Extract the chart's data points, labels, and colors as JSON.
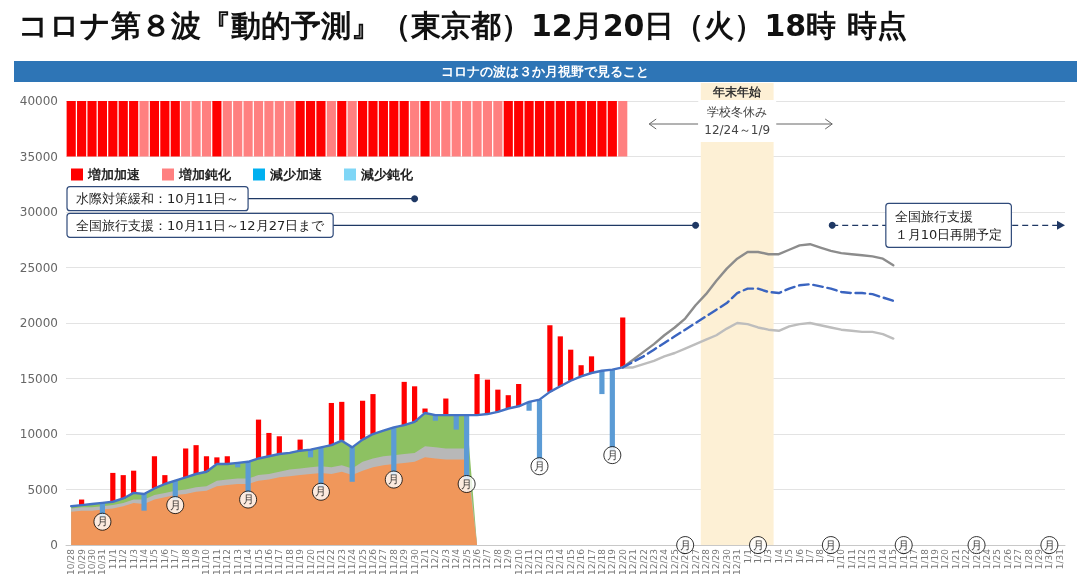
{
  "chart_data": {
    "type": "area",
    "title": "コロナ第８波『動的予測』（東京都）12月20日（火）18時 時点",
    "subtitle": "コロナの波は３か月視野で見ること",
    "categories": [
      "10/28",
      "10/29",
      "10/30",
      "10/31",
      "11/1",
      "11/2",
      "11/3",
      "11/4",
      "11/5",
      "11/6",
      "11/7",
      "11/8",
      "11/9",
      "11/10",
      "11/11",
      "11/12",
      "11/13",
      "11/14",
      "11/15",
      "11/16",
      "11/17",
      "11/18",
      "11/19",
      "11/20",
      "11/21",
      "11/22",
      "11/23",
      "11/24",
      "11/25",
      "11/26",
      "11/27",
      "11/28",
      "11/29",
      "11/30",
      "12/1",
      "12/2",
      "12/3",
      "12/4",
      "12/5",
      "12/6",
      "12/7",
      "12/8",
      "12/9",
      "12/10",
      "12/11",
      "12/12",
      "12/13",
      "12/14",
      "12/15",
      "12/16",
      "12/17",
      "12/18",
      "12/19",
      "12/20",
      "12/21",
      "12/22",
      "12/23",
      "12/24",
      "12/25",
      "12/26",
      "12/27",
      "12/28",
      "12/29",
      "12/30",
      "12/31",
      "1/1",
      "1/2",
      "1/3",
      "1/4",
      "1/5",
      "1/6",
      "1/7",
      "1/8",
      "1/9",
      "1/10",
      "1/11",
      "1/12",
      "1/13",
      "1/14",
      "1/15",
      "1/16",
      "1/17",
      "1/18",
      "1/19",
      "1/20",
      "1/21",
      "1/22",
      "1/23",
      "1/24",
      "1/25",
      "1/26",
      "1/27",
      "1/28",
      "1/29",
      "1/30",
      "1/31"
    ],
    "series": [
      {
        "color": "#8dc162",
        "values": [
          3500,
          3600,
          3700,
          3800,
          3900,
          4200,
          4700,
          4600,
          5100,
          5500,
          5800,
          6100,
          6400,
          6600,
          7300,
          7300,
          7400,
          7500,
          7800,
          8000,
          8200,
          8300,
          8500,
          8600,
          8800,
          9000,
          9400,
          8800,
          9500,
          10000,
          10300,
          10600,
          10800,
          11100,
          11900,
          11700,
          11700,
          11700,
          11700,
          0,
          null,
          null,
          null,
          null,
          null,
          null,
          null,
          null,
          null,
          null,
          null,
          null,
          null,
          null,
          null,
          null,
          null,
          null,
          null,
          null,
          null,
          null,
          null,
          null,
          null,
          null,
          null,
          null,
          null,
          null,
          null,
          null,
          null,
          null,
          null,
          null,
          null,
          null,
          null,
          null,
          null,
          null,
          null,
          null,
          null,
          null,
          null,
          null,
          null,
          null,
          null,
          null,
          null,
          null,
          null,
          null
        ]
      },
      {
        "color": "#b8b8b8",
        "values": [
          3300,
          3400,
          3400,
          3500,
          3600,
          3800,
          4100,
          4100,
          4500,
          4700,
          4900,
          5000,
          5200,
          5300,
          5800,
          5900,
          6000,
          6000,
          6300,
          6400,
          6600,
          6800,
          6900,
          7000,
          7100,
          7000,
          7200,
          6900,
          7500,
          7800,
          8000,
          8100,
          8200,
          8300,
          8900,
          8800,
          8700,
          8700,
          8700,
          0,
          null,
          null,
          null,
          null,
          null,
          null,
          null,
          null,
          null,
          null,
          null,
          null,
          null,
          null,
          null,
          null,
          null,
          null,
          null,
          null,
          null,
          null,
          null,
          null,
          null,
          null,
          null,
          null,
          null,
          null,
          null,
          null,
          null,
          null,
          null,
          null,
          null,
          null,
          null,
          null,
          null,
          null,
          null,
          null,
          null,
          null,
          null,
          null,
          null,
          null,
          null,
          null,
          null,
          null,
          null,
          null
        ]
      },
      {
        "color": "#f0975b",
        "values": [
          3000,
          3100,
          3100,
          3200,
          3300,
          3500,
          3800,
          3700,
          4100,
          4300,
          4500,
          4600,
          4800,
          4900,
          5300,
          5400,
          5500,
          5500,
          5800,
          5900,
          6100,
          6200,
          6300,
          6400,
          6500,
          6400,
          6600,
          6300,
          6700,
          7000,
          7200,
          7300,
          7400,
          7500,
          7900,
          7800,
          7700,
          7700,
          7700,
          0,
          null,
          null,
          null,
          null,
          null,
          null,
          null,
          null,
          null,
          null,
          null,
          null,
          null,
          null,
          null,
          null,
          null,
          null,
          null,
          null,
          null,
          null,
          null,
          null,
          null,
          null,
          null,
          null,
          null,
          null,
          null,
          null,
          null,
          null,
          null,
          null,
          null,
          null,
          null,
          null,
          null,
          null,
          null,
          null,
          null,
          null,
          null,
          null,
          null,
          null,
          null,
          null,
          null,
          null,
          null,
          null
        ]
      },
      {
        "type": "bar",
        "color": "#ff0000",
        "base": [
          null,
          3600,
          null,
          null,
          3900,
          4200,
          4700,
          null,
          5100,
          5500,
          null,
          6100,
          6400,
          6600,
          7300,
          7300,
          null,
          null,
          7800,
          8000,
          8200,
          null,
          8500,
          null,
          null,
          9000,
          9400,
          null,
          9500,
          10000,
          null,
          null,
          10800,
          11100,
          11900,
          null,
          11700,
          null,
          null,
          11700,
          11800,
          12000,
          12300,
          12500,
          null,
          null,
          13800,
          14300,
          14800,
          15200,
          15500,
          null,
          null,
          16000,
          null,
          null,
          null,
          null,
          null,
          null,
          null,
          null,
          null,
          null,
          null,
          null,
          null,
          null,
          null,
          null,
          null,
          null,
          null,
          null,
          null,
          null,
          null,
          null,
          null,
          null,
          null,
          null,
          null,
          null,
          null,
          null,
          null,
          null,
          null,
          null,
          null,
          null,
          null,
          null,
          null,
          null
        ],
        "values": [
          null,
          500,
          null,
          null,
          2600,
          2100,
          2000,
          null,
          2900,
          800,
          null,
          2600,
          2600,
          1400,
          600,
          700,
          null,
          null,
          3500,
          2100,
          1600,
          null,
          1000,
          null,
          null,
          3800,
          3500,
          null,
          3500,
          3600,
          null,
          null,
          3900,
          3200,
          400,
          null,
          1500,
          null,
          null,
          3700,
          3100,
          2000,
          1200,
          2000,
          null,
          null,
          6000,
          4500,
          2800,
          1000,
          1500,
          null,
          null,
          4500,
          null,
          null,
          null,
          null,
          null,
          null,
          null,
          null,
          null,
          null,
          null,
          null,
          null,
          null,
          null,
          null,
          null,
          null,
          null,
          null,
          null,
          null,
          null,
          null,
          null,
          null,
          null,
          null,
          null,
          null,
          null,
          null,
          null,
          null,
          null,
          null,
          null,
          null,
          null,
          null,
          null,
          null
        ]
      },
      {
        "type": "bar",
        "color": "#5b9bd5",
        "base": [
          null,
          null,
          null,
          3800,
          null,
          null,
          null,
          4600,
          null,
          null,
          5800,
          null,
          null,
          null,
          null,
          null,
          7400,
          7500,
          null,
          null,
          null,
          null,
          null,
          8600,
          8800,
          null,
          null,
          8800,
          null,
          null,
          null,
          10600,
          null,
          null,
          null,
          11700,
          null,
          11700,
          11700,
          null,
          null,
          null,
          null,
          null,
          12900,
          13100,
          null,
          null,
          null,
          null,
          null,
          15700,
          15800,
          null,
          null,
          null,
          null,
          null,
          null,
          null,
          null,
          null,
          null,
          null,
          null,
          null,
          null,
          null,
          null,
          null,
          null,
          null,
          null,
          null,
          null,
          null,
          null,
          null,
          null,
          null,
          null,
          null,
          null,
          null,
          null,
          null,
          null,
          null,
          null,
          null,
          null,
          null,
          null,
          null,
          null,
          null
        ],
        "values": [
          null,
          null,
          null,
          -1300,
          null,
          null,
          null,
          -1500,
          null,
          null,
          -1700,
          null,
          null,
          null,
          null,
          null,
          -400,
          -2800,
          null,
          null,
          null,
          null,
          null,
          -700,
          -3600,
          null,
          null,
          -3100,
          null,
          null,
          null,
          -4300,
          null,
          null,
          null,
          -500,
          null,
          -1300,
          -5800,
          null,
          null,
          null,
          null,
          null,
          -800,
          -5500,
          null,
          null,
          null,
          null,
          null,
          -2100,
          -7300,
          null,
          null,
          null,
          null,
          null,
          null,
          null,
          null,
          null,
          null,
          null,
          null,
          null,
          null,
          null,
          null,
          null,
          null,
          null,
          null,
          null,
          null,
          null,
          null,
          null,
          null,
          null,
          null,
          null,
          null,
          null,
          null,
          null,
          null,
          null,
          null,
          null,
          null,
          null,
          null,
          null,
          null,
          null
        ]
      },
      {
        "type": "line",
        "color": "#4472c4",
        "values": [
          3500,
          3600,
          3700,
          3800,
          3900,
          4200,
          4700,
          4600,
          5100,
          5500,
          5800,
          6100,
          6400,
          6600,
          7300,
          7300,
          7400,
          7500,
          7800,
          8000,
          8200,
          8300,
          8500,
          8600,
          8800,
          9000,
          9400,
          8800,
          9500,
          10000,
          10300,
          10600,
          10800,
          11100,
          11900,
          11700,
          11700,
          11700,
          11700,
          11700,
          11800,
          12000,
          12300,
          12500,
          12900,
          13100,
          13800,
          14300,
          14800,
          15200,
          15500,
          15700,
          15800,
          16000,
          null,
          null,
          null,
          null,
          null,
          null,
          null,
          null,
          null,
          null,
          null,
          null,
          null,
          null,
          null,
          null,
          null,
          null,
          null,
          null,
          null,
          null,
          null,
          null,
          null,
          null,
          null,
          null,
          null,
          null,
          null,
          null,
          null,
          null,
          null,
          null,
          null,
          null,
          null,
          null,
          null,
          null
        ]
      },
      {
        "type": "line",
        "color": "#8c8c8c",
        "values": [
          null,
          null,
          null,
          null,
          null,
          null,
          null,
          null,
          null,
          null,
          null,
          null,
          null,
          null,
          null,
          null,
          null,
          null,
          null,
          null,
          null,
          null,
          null,
          null,
          null,
          null,
          null,
          null,
          null,
          null,
          null,
          null,
          null,
          null,
          null,
          null,
          null,
          null,
          null,
          null,
          null,
          null,
          null,
          null,
          null,
          null,
          null,
          null,
          null,
          null,
          null,
          null,
          null,
          16000,
          16700,
          17400,
          18100,
          18900,
          19600,
          20400,
          21600,
          22600,
          23800,
          24900,
          25800,
          26400,
          26400,
          26200,
          26200,
          26600,
          27000,
          27100,
          26800,
          26500,
          26300,
          26200,
          26100,
          26000,
          25800,
          25200,
          null,
          null,
          null,
          null,
          null,
          null,
          null,
          null,
          null,
          null,
          null,
          null,
          null,
          null,
          null,
          null
        ]
      },
      {
        "type": "line",
        "color": "#bdbdbd",
        "values": [
          null,
          null,
          null,
          null,
          null,
          null,
          null,
          null,
          null,
          null,
          null,
          null,
          null,
          null,
          null,
          null,
          null,
          null,
          null,
          null,
          null,
          null,
          null,
          null,
          null,
          null,
          null,
          null,
          null,
          null,
          null,
          null,
          null,
          null,
          null,
          null,
          null,
          null,
          null,
          null,
          null,
          null,
          null,
          null,
          null,
          null,
          null,
          null,
          null,
          null,
          null,
          null,
          null,
          16000,
          16000,
          16300,
          16600,
          17000,
          17300,
          17700,
          18100,
          18500,
          18900,
          19500,
          20000,
          19900,
          19600,
          19400,
          19300,
          19700,
          19900,
          20000,
          19800,
          19600,
          19400,
          19300,
          19200,
          19200,
          19000,
          18600,
          null,
          null,
          null,
          null,
          null,
          null,
          null,
          null,
          null,
          null,
          null,
          null,
          null,
          null,
          null,
          null
        ]
      },
      {
        "type": "line",
        "color": "#3a64c0",
        "line_style": "dashed",
        "values": [
          null,
          null,
          null,
          null,
          null,
          null,
          null,
          null,
          null,
          null,
          null,
          null,
          null,
          null,
          null,
          null,
          null,
          null,
          null,
          null,
          null,
          null,
          null,
          null,
          null,
          null,
          null,
          null,
          null,
          null,
          null,
          null,
          null,
          null,
          null,
          null,
          null,
          null,
          null,
          null,
          null,
          null,
          null,
          null,
          null,
          null,
          null,
          null,
          null,
          null,
          null,
          null,
          null,
          16000,
          16500,
          17000,
          17600,
          18200,
          18800,
          19400,
          20000,
          20600,
          21200,
          21800,
          22700,
          23100,
          23100,
          22800,
          22700,
          23100,
          23400,
          23500,
          23300,
          23100,
          22800,
          22700,
          22700,
          22600,
          22300,
          22000,
          null,
          null,
          null,
          null,
          null,
          null,
          null,
          null,
          null,
          null,
          null,
          null,
          null,
          null,
          null,
          null
        ]
      },
      {
        "type": "bar",
        "name": "増加加速",
        "color": "#ff0000",
        "base": [
          35000,
          35000,
          35000,
          35000,
          35000,
          35000,
          35000,
          null,
          35000,
          35000,
          35000,
          null,
          null,
          null,
          35000,
          null,
          null,
          null,
          null,
          null,
          null,
          null,
          35000,
          35000,
          35000,
          null,
          35000,
          null,
          35000,
          35000,
          35000,
          35000,
          35000,
          null,
          35000,
          null,
          null,
          null,
          null,
          null,
          null,
          null,
          35000,
          35000,
          35000,
          35000,
          35000,
          35000,
          35000,
          35000,
          35000,
          35000,
          35000,
          null,
          null,
          null,
          null,
          null,
          null,
          null,
          null,
          null,
          null,
          null,
          null,
          null,
          null,
          null,
          null,
          null,
          null,
          null,
          null,
          null,
          null,
          null,
          null,
          null,
          null,
          null,
          null,
          null,
          null,
          null,
          null,
          null,
          null,
          null,
          null,
          null,
          null,
          null,
          null,
          null,
          null,
          null
        ],
        "values": [
          5000,
          5000,
          5000,
          5000,
          5000,
          5000,
          5000,
          null,
          5000,
          5000,
          5000,
          null,
          null,
          null,
          5000,
          null,
          null,
          null,
          null,
          null,
          null,
          null,
          5000,
          5000,
          5000,
          null,
          5000,
          null,
          5000,
          5000,
          5000,
          5000,
          5000,
          null,
          5000,
          null,
          null,
          null,
          null,
          null,
          null,
          null,
          5000,
          5000,
          5000,
          5000,
          5000,
          5000,
          5000,
          5000,
          5000,
          5000,
          5000,
          null,
          null,
          null,
          null,
          null,
          null,
          null,
          null,
          null,
          null,
          null,
          null,
          null,
          null,
          null,
          null,
          null,
          null,
          null,
          null,
          null,
          null,
          null,
          null,
          null,
          null,
          null,
          null,
          null,
          null,
          null,
          null,
          null,
          null,
          null,
          null,
          null,
          null,
          null,
          null,
          null,
          null,
          null
        ]
      },
      {
        "type": "bar",
        "name": "増加鈍化",
        "color": "#ff8080",
        "base": [
          null,
          null,
          null,
          null,
          null,
          null,
          null,
          35000,
          null,
          null,
          null,
          35000,
          35000,
          35000,
          null,
          35000,
          35000,
          35000,
          35000,
          35000,
          35000,
          35000,
          null,
          null,
          null,
          35000,
          null,
          35000,
          null,
          null,
          null,
          null,
          null,
          35000,
          null,
          35000,
          35000,
          35000,
          35000,
          35000,
          35000,
          35000,
          null,
          null,
          null,
          null,
          null,
          null,
          null,
          null,
          null,
          null,
          null,
          35000,
          null,
          null,
          null,
          null,
          null,
          null,
          null,
          null,
          null,
          null,
          null,
          null,
          null,
          null,
          null,
          null,
          null,
          null,
          null,
          null,
          null,
          null,
          null,
          null,
          null,
          null,
          null,
          null,
          null,
          null,
          null,
          null,
          null,
          null,
          null,
          null,
          null,
          null,
          null,
          null,
          null,
          null
        ],
        "values": [
          null,
          null,
          null,
          null,
          null,
          null,
          null,
          5000,
          null,
          null,
          null,
          5000,
          5000,
          5000,
          null,
          5000,
          5000,
          5000,
          5000,
          5000,
          5000,
          5000,
          null,
          null,
          null,
          5000,
          null,
          5000,
          null,
          null,
          null,
          null,
          null,
          5000,
          null,
          5000,
          5000,
          5000,
          5000,
          5000,
          5000,
          5000,
          null,
          null,
          null,
          null,
          null,
          null,
          null,
          null,
          null,
          null,
          null,
          5000,
          null,
          null,
          null,
          null,
          null,
          null,
          null,
          null,
          null,
          null,
          null,
          null,
          null,
          null,
          null,
          null,
          null,
          null,
          null,
          null,
          null,
          null,
          null,
          null,
          null,
          null,
          null,
          null,
          null,
          null,
          null,
          null,
          null,
          null,
          null,
          null,
          null,
          null,
          null,
          null,
          null,
          null
        ]
      },
      {
        "type": "bar",
        "name": "減少加速",
        "color": "#00b0f0",
        "values": [
          null,
          null,
          null,
          null,
          null,
          null,
          null,
          null,
          null,
          null,
          null,
          null,
          null,
          null,
          null,
          null,
          null,
          null,
          null,
          null,
          null,
          null,
          null,
          null,
          null,
          null,
          null,
          null,
          null,
          null,
          null,
          null,
          null,
          null,
          null,
          null,
          null,
          null,
          null,
          null,
          null,
          null,
          null,
          null,
          null,
          null,
          null,
          null,
          null,
          null,
          null,
          null,
          null,
          null,
          null,
          null,
          null,
          null,
          null,
          null,
          null,
          null,
          null,
          null,
          null,
          null,
          null,
          null,
          null,
          null,
          null,
          null,
          null,
          null,
          null,
          null,
          null,
          null,
          null,
          null,
          null,
          null,
          null,
          null,
          null,
          null,
          null,
          null,
          null,
          null,
          null,
          null,
          null,
          null,
          null,
          null
        ]
      },
      {
        "type": "bar",
        "name": "減少鈍化",
        "color": "#7fd6f6",
        "values": [
          null,
          null,
          null,
          null,
          null,
          null,
          null,
          null,
          null,
          null,
          null,
          null,
          null,
          null,
          null,
          null,
          null,
          null,
          null,
          null,
          null,
          null,
          null,
          null,
          null,
          null,
          null,
          null,
          null,
          null,
          null,
          null,
          null,
          null,
          null,
          null,
          null,
          null,
          null,
          null,
          null,
          null,
          null,
          null,
          null,
          null,
          null,
          null,
          null,
          null,
          null,
          null,
          null,
          null,
          null,
          null,
          null,
          null,
          null,
          null,
          null,
          null,
          null,
          null,
          null,
          null,
          null,
          null,
          null,
          null,
          null,
          null,
          null,
          null,
          null,
          null,
          null,
          null,
          null,
          null,
          null,
          null,
          null,
          null,
          null,
          null,
          null,
          null,
          null,
          null,
          null,
          null,
          null,
          null,
          null,
          null
        ]
      },
      {
        "type": "scatter",
        "color": "#000000",
        "marker": "circle",
        "values": [
          null,
          null,
          null,
          2100,
          null,
          null,
          null,
          null,
          null,
          null,
          3600,
          null,
          null,
          null,
          null,
          null,
          null,
          4100,
          null,
          null,
          null,
          null,
          null,
          null,
          4800,
          null,
          null,
          null,
          null,
          null,
          null,
          5900,
          null,
          null,
          null,
          null,
          null,
          null,
          5500,
          null,
          null,
          null,
          null,
          null,
          null,
          7100,
          null,
          null,
          null,
          null,
          null,
          null,
          8100,
          null,
          null,
          null,
          null,
          null,
          null,
          0,
          null,
          null,
          null,
          null,
          null,
          null,
          0,
          null,
          null,
          null,
          null,
          null,
          null,
          0,
          null,
          null,
          null,
          null,
          null,
          null,
          0,
          null,
          null,
          null,
          null,
          null,
          null,
          0,
          null,
          null,
          null,
          null,
          null,
          null,
          0,
          null
        ],
        "value_labels": [
          null,
          null,
          null,
          "月",
          null,
          null,
          null,
          null,
          null,
          null,
          "月",
          null,
          null,
          null,
          null,
          null,
          null,
          "月",
          null,
          null,
          null,
          null,
          null,
          null,
          "月",
          null,
          null,
          null,
          null,
          null,
          null,
          "月",
          null,
          null,
          null,
          null,
          null,
          null,
          "月",
          null,
          null,
          null,
          null,
          null,
          null,
          "月",
          null,
          null,
          null,
          null,
          null,
          null,
          "月",
          null,
          null,
          null,
          null,
          null,
          null,
          "月",
          null,
          null,
          null,
          null,
          null,
          null,
          "月",
          null,
          null,
          null,
          null,
          null,
          null,
          "月",
          null,
          null,
          null,
          null,
          null,
          null,
          "月",
          null,
          null,
          null,
          null,
          null,
          null,
          "月",
          null,
          null,
          null,
          null,
          null,
          null,
          "月",
          null
        ]
      }
    ],
    "bands": [
      {
        "axis": "x",
        "from": "12/28",
        "to": "1/3",
        "label": "年末年始",
        "color": "#fdf0d5"
      }
    ],
    "annotations": [
      "学校冬休み",
      "12/24～1/9",
      {
        "text": "水際対策緩和：10月11日～",
        "x": "11/30",
        "y": 31200
      },
      {
        "text": "全国旅行支援：10月11日～12月27日まで",
        "x": "12/27",
        "y": 28800
      },
      "全国旅行支援",
      "１月10日再開予定"
    ],
    "ylim": [
      0,
      40000
    ],
    "yticks": [
      0,
      5000,
      10000,
      15000,
      20000,
      25000,
      30000,
      35000,
      40000
    ],
    "grid": "y",
    "legend": "top left",
    "marker": "none"
  }
}
